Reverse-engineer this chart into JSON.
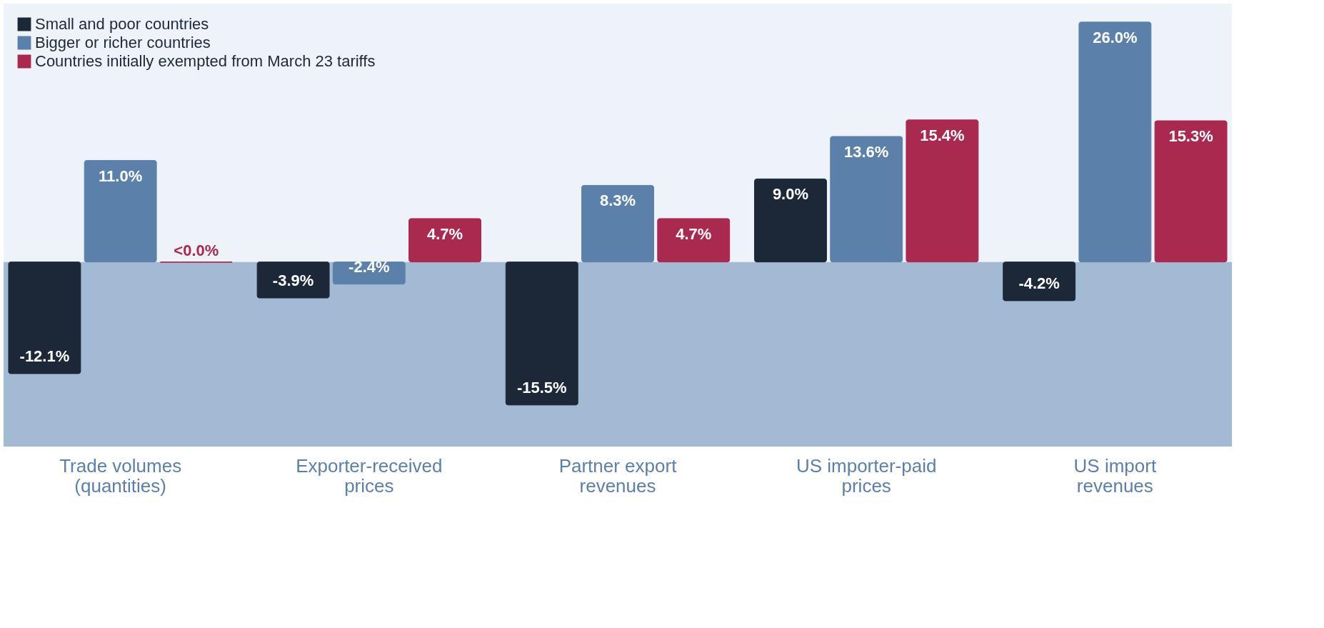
{
  "chart_data": {
    "type": "bar",
    "categories": [
      "Trade volumes (quantities)",
      "Exporter-received prices",
      "Partner export revenues",
      "US importer-paid prices",
      "US import revenues"
    ],
    "series": [
      {
        "name": "Small and poor countries",
        "color": "#1c2838",
        "values": [
          -12.1,
          -3.9,
          -15.5,
          9.0,
          -4.2
        ],
        "value_labels": [
          "-12.1%",
          "-3.9%",
          "-15.5%",
          "9.0%",
          "-4.2%"
        ]
      },
      {
        "name": "Bigger or richer countries",
        "color": "#5b80aa",
        "values": [
          11.0,
          -2.4,
          8.3,
          13.6,
          26.0
        ],
        "value_labels": [
          "11.0%",
          "-2.4%",
          "8.3%",
          "13.6%",
          "26.0%"
        ]
      },
      {
        "name": "Countries initially exempted from March 23 tariffs",
        "color": "#a9294f",
        "values": [
          -0.04,
          4.7,
          4.7,
          15.4,
          15.3
        ],
        "value_labels": [
          "<0.0%",
          "4.7%",
          "4.7%",
          "15.4%",
          "15.3%"
        ]
      }
    ],
    "ylim": [
      -20,
      28
    ],
    "bands": [
      {
        "axis": "y",
        "from": -20,
        "to": 0,
        "color": "#a3bad4"
      }
    ],
    "legend": "top left",
    "grid": false
  }
}
